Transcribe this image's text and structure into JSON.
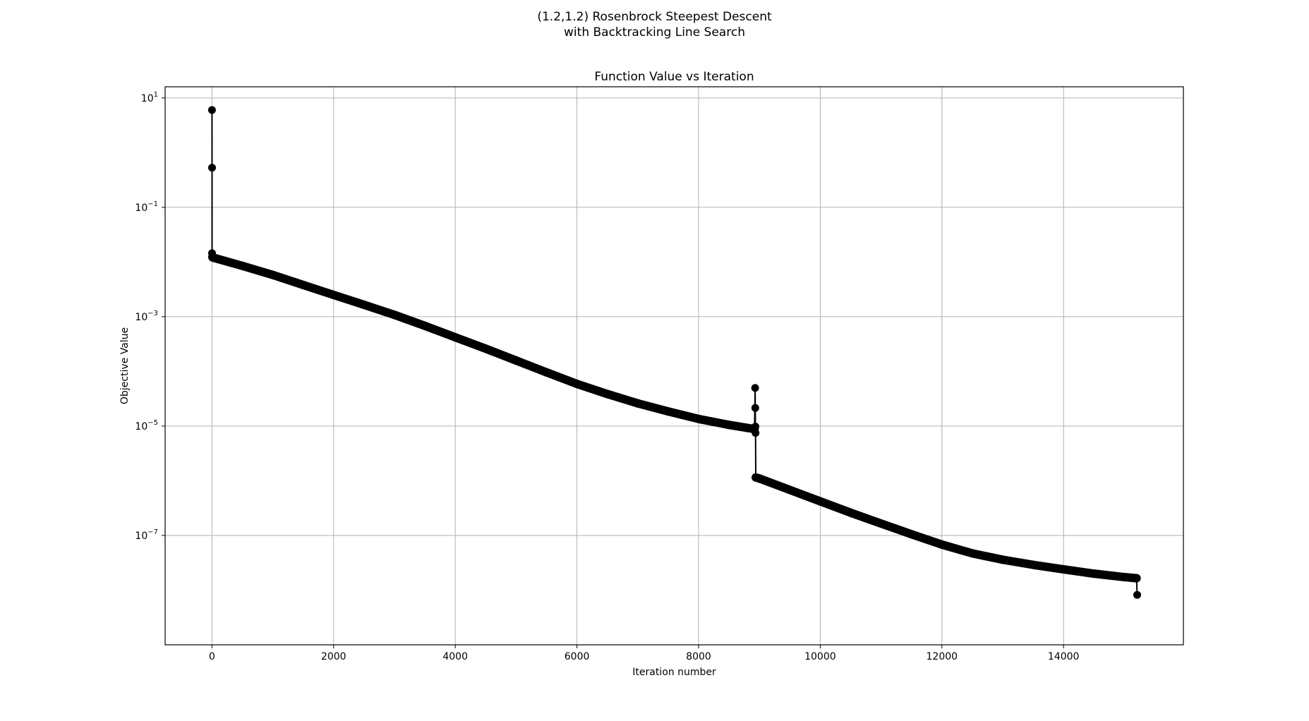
{
  "figure": {
    "suptitle_line1": "(1.2,1.2) Rosenbrock Steepest Descent",
    "suptitle_line2": "with Backtracking Line Search"
  },
  "chart_data": {
    "type": "line",
    "title": "Function Value vs Iteration",
    "xlabel": "Iteration number",
    "ylabel": "Objective Value",
    "yscale": "log",
    "xlim": [
      -770,
      15970
    ],
    "ylim": [
      1e-09,
      16
    ],
    "xticks": [
      0,
      2000,
      4000,
      6000,
      8000,
      10000,
      12000,
      14000
    ],
    "yticks": [
      {
        "value": 10,
        "base": "10",
        "exp": "1"
      },
      {
        "value": 0.1,
        "base": "10",
        "exp": "−1"
      },
      {
        "value": 0.001,
        "base": "10",
        "exp": "−3"
      },
      {
        "value": 1e-05,
        "base": "10",
        "exp": "−5"
      },
      {
        "value": 1e-07,
        "base": "10",
        "exp": "−7"
      }
    ],
    "grid": true,
    "legend": "none",
    "line_color": "#000000",
    "marker": "circle",
    "series": [
      {
        "x": [
          0,
          1,
          2,
          3,
          4,
          10,
          500,
          1000,
          1500,
          2000,
          2500,
          3000,
          3500,
          4000,
          4500,
          5000,
          5500,
          6000,
          6500,
          7000,
          7500,
          8000,
          8500,
          8920,
          8930,
          8932,
          8934,
          8936,
          8940,
          9000,
          9500,
          10000,
          10500,
          11000,
          11500,
          12000,
          12500,
          13000,
          13500,
          14000,
          14500,
          15000,
          15200,
          15210
        ],
        "y": [
          6.0,
          0.53,
          0.0145,
          0.0125,
          0.0122,
          0.0121,
          0.0085,
          0.0058,
          0.0038,
          0.0025,
          0.00165,
          0.00108,
          0.00068,
          0.00042,
          0.00026,
          0.000158,
          9.6e-05,
          5.9e-05,
          3.85e-05,
          2.6e-05,
          1.85e-05,
          1.35e-05,
          1.05e-05,
          8.8e-06,
          4.98e-05,
          2.15e-05,
          9.8e-06,
          7.5e-06,
          1.15e-06,
          1.1e-06,
          6.8e-07,
          4.2e-07,
          2.6e-07,
          1.65e-07,
          1.05e-07,
          6.8e-08,
          4.7e-08,
          3.6e-08,
          2.9e-08,
          2.4e-08,
          2e-08,
          1.73e-08,
          1.65e-08,
          8.2e-09
        ]
      }
    ]
  }
}
